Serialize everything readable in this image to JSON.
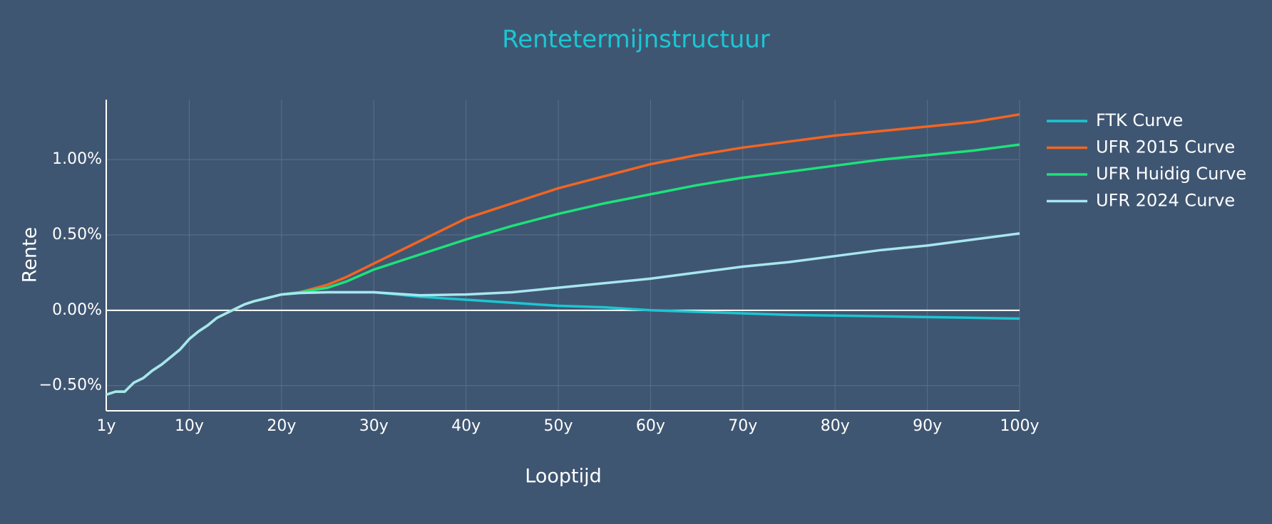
{
  "chart_data": {
    "type": "line",
    "title": "Rentetermijnstructuur",
    "x_label": "Looptijd",
    "y_label": "Rente",
    "x": [
      1,
      2,
      3,
      4,
      5,
      6,
      7,
      8,
      9,
      10,
      11,
      12,
      13,
      14,
      15,
      16,
      17,
      18,
      19,
      20,
      22,
      25,
      27,
      30,
      35,
      40,
      45,
      50,
      55,
      60,
      65,
      70,
      75,
      80,
      85,
      90,
      95,
      100
    ],
    "series": [
      {
        "name": "FTK Curve",
        "color": "#1cc6d2",
        "values": [
          -0.56,
          -0.54,
          -0.54,
          -0.48,
          -0.45,
          -0.4,
          -0.36,
          -0.31,
          -0.26,
          -0.19,
          -0.14,
          -0.1,
          -0.05,
          -0.02,
          0.01,
          0.04,
          0.06,
          0.075,
          0.09,
          0.105,
          0.115,
          0.12,
          0.12,
          0.12,
          0.09,
          0.07,
          0.05,
          0.03,
          0.02,
          0.0,
          -0.01,
          -0.02,
          -0.03,
          -0.035,
          -0.04,
          -0.045,
          -0.05,
          -0.055
        ]
      },
      {
        "name": "UFR 2015 Curve",
        "color": "#f26522",
        "values": [
          -0.56,
          -0.54,
          -0.54,
          -0.48,
          -0.45,
          -0.4,
          -0.36,
          -0.31,
          -0.26,
          -0.19,
          -0.14,
          -0.1,
          -0.05,
          -0.02,
          0.01,
          0.04,
          0.06,
          0.075,
          0.09,
          0.105,
          0.12,
          0.17,
          0.22,
          0.31,
          0.46,
          0.61,
          0.71,
          0.81,
          0.89,
          0.97,
          1.03,
          1.08,
          1.12,
          1.16,
          1.19,
          1.22,
          1.25,
          1.3
        ]
      },
      {
        "name": "UFR Huidig Curve",
        "color": "#1de27a",
        "values": [
          -0.56,
          -0.54,
          -0.54,
          -0.48,
          -0.45,
          -0.4,
          -0.36,
          -0.31,
          -0.26,
          -0.19,
          -0.14,
          -0.1,
          -0.05,
          -0.02,
          0.01,
          0.04,
          0.06,
          0.075,
          0.09,
          0.105,
          0.12,
          0.15,
          0.19,
          0.27,
          0.37,
          0.47,
          0.56,
          0.64,
          0.71,
          0.77,
          0.83,
          0.88,
          0.92,
          0.96,
          1.0,
          1.03,
          1.06,
          1.1
        ]
      },
      {
        "name": "UFR 2024 Curve",
        "color": "#a8e6f0",
        "values": [
          -0.56,
          -0.54,
          -0.54,
          -0.48,
          -0.45,
          -0.4,
          -0.36,
          -0.31,
          -0.26,
          -0.19,
          -0.14,
          -0.1,
          -0.05,
          -0.02,
          0.01,
          0.04,
          0.06,
          0.075,
          0.09,
          0.105,
          0.115,
          0.12,
          0.12,
          0.12,
          0.1,
          0.105,
          0.12,
          0.15,
          0.18,
          0.21,
          0.25,
          0.29,
          0.32,
          0.36,
          0.4,
          0.43,
          0.47,
          0.51
        ]
      }
    ],
    "xlim": [
      1,
      100
    ],
    "xticks": [
      {
        "value": 1,
        "label": "1y"
      },
      {
        "value": 10,
        "label": "10y"
      },
      {
        "value": 20,
        "label": "20y"
      },
      {
        "value": 30,
        "label": "30y"
      },
      {
        "value": 40,
        "label": "40y"
      },
      {
        "value": 50,
        "label": "50y"
      },
      {
        "value": 60,
        "label": "60y"
      },
      {
        "value": 70,
        "label": "70y"
      },
      {
        "value": 80,
        "label": "80y"
      },
      {
        "value": 90,
        "label": "90y"
      },
      {
        "value": 100,
        "label": "100y"
      }
    ],
    "ylim": [
      -0.667,
      1.398
    ],
    "yticks": [
      {
        "value": -0.5,
        "label": "−0.50%"
      },
      {
        "value": 0,
        "label": "0.00%"
      },
      {
        "value": 0.5,
        "label": "0.50%"
      },
      {
        "value": 1.0,
        "label": "1.00%"
      }
    ],
    "grid": true,
    "legend": "right"
  }
}
